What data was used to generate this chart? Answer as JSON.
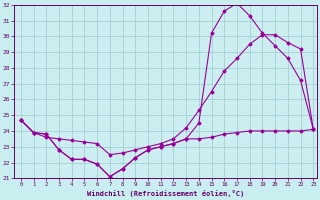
{
  "xlabel": "Windchill (Refroidissement éolien,°C)",
  "bg_color": "#c8eef0",
  "plot_bg_color": "#cceef0",
  "grid_color": "#99cccc",
  "line_color": "#990099",
  "x_hours": [
    0,
    1,
    2,
    3,
    4,
    5,
    6,
    7,
    8,
    9,
    10,
    11,
    12,
    13,
    14,
    15,
    16,
    17,
    18,
    19,
    20,
    21,
    22,
    23
  ],
  "series": [
    [
      24.7,
      23.9,
      23.8,
      22.8,
      22.2,
      22.2,
      21.9,
      21.1,
      21.6,
      22.3,
      22.8,
      23.0,
      23.2,
      23.5,
      24.5,
      30.2,
      31.6,
      32.1,
      31.3,
      30.2,
      29.4,
      28.6,
      27.2,
      24.1
    ],
    [
      24.7,
      23.9,
      23.6,
      23.5,
      23.4,
      23.3,
      23.2,
      22.5,
      22.6,
      22.8,
      23.0,
      23.2,
      23.5,
      24.2,
      25.3,
      26.5,
      27.8,
      28.6,
      29.5,
      30.1,
      30.1,
      29.6,
      29.2,
      24.1
    ],
    [
      24.7,
      23.9,
      23.8,
      22.8,
      22.2,
      22.2,
      21.9,
      21.1,
      21.6,
      22.3,
      22.8,
      23.0,
      23.2,
      23.5,
      23.5,
      23.6,
      23.8,
      23.9,
      24.0,
      24.0,
      24.0,
      24.0,
      24.0,
      24.1
    ]
  ],
  "ylim": [
    21,
    32
  ],
  "xlim": [
    -0.5,
    23.3
  ],
  "yticks": [
    21,
    22,
    23,
    24,
    25,
    26,
    27,
    28,
    29,
    30,
    31,
    32
  ],
  "xticks": [
    0,
    1,
    2,
    3,
    4,
    5,
    6,
    7,
    8,
    9,
    10,
    11,
    12,
    13,
    14,
    15,
    16,
    17,
    18,
    19,
    20,
    21,
    22,
    23
  ]
}
